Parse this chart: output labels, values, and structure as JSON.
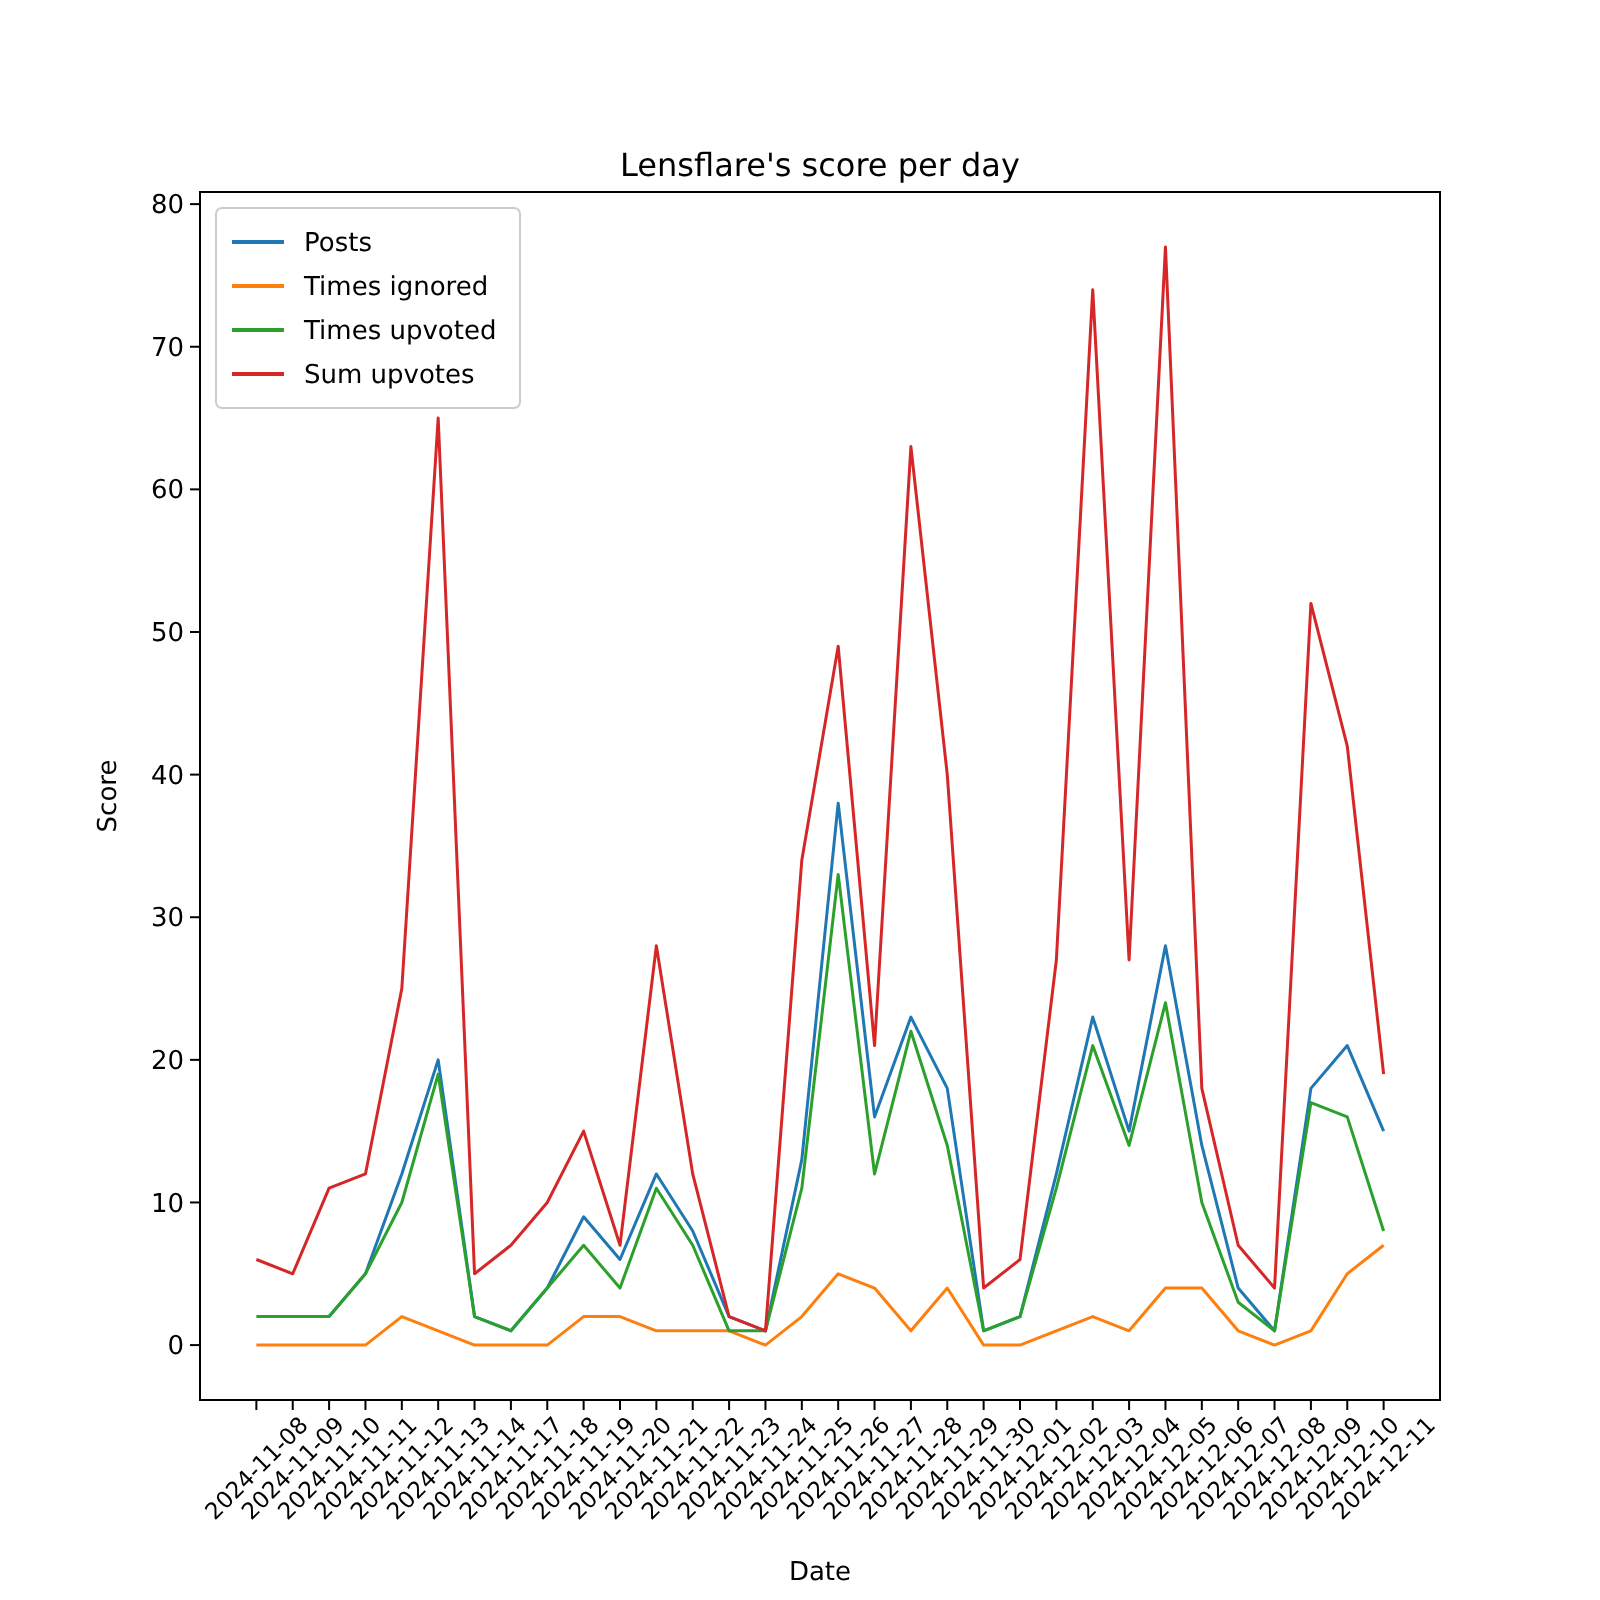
{
  "chart_data": {
    "type": "line",
    "title": "Lensflare's score per day",
    "xlabel": "Date",
    "ylabel": "Score",
    "categories": [
      "2024-11-08",
      "2024-11-09",
      "2024-11-10",
      "2024-11-11",
      "2024-11-12",
      "2024-11-13",
      "2024-11-14",
      "2024-11-17",
      "2024-11-18",
      "2024-11-19",
      "2024-11-20",
      "2024-11-21",
      "2024-11-22",
      "2024-11-23",
      "2024-11-24",
      "2024-11-25",
      "2024-11-26",
      "2024-11-27",
      "2024-11-28",
      "2024-11-29",
      "2024-11-30",
      "2024-12-01",
      "2024-12-02",
      "2024-12-03",
      "2024-12-04",
      "2024-12-05",
      "2024-12-06",
      "2024-12-07",
      "2024-12-08",
      "2024-12-09",
      "2024-12-10",
      "2024-12-11"
    ],
    "series": [
      {
        "name": "Posts",
        "color": "#1f77b4",
        "values": [
          null,
          null,
          2,
          5,
          12,
          20,
          2,
          1,
          4,
          9,
          6,
          12,
          8,
          2,
          1,
          13,
          38,
          16,
          23,
          18,
          1,
          2,
          12,
          23,
          15,
          28,
          14,
          4,
          1,
          18,
          21,
          15
        ]
      },
      {
        "name": "Times ignored",
        "color": "#ff7f0e",
        "values": [
          0,
          0,
          0,
          0,
          2,
          1,
          0,
          0,
          0,
          2,
          2,
          1,
          1,
          1,
          0,
          2,
          5,
          4,
          1,
          4,
          0,
          0,
          1,
          2,
          1,
          4,
          4,
          1,
          0,
          1,
          5,
          7
        ]
      },
      {
        "name": "Times upvoted",
        "color": "#2ca02c",
        "values": [
          2,
          2,
          2,
          5,
          10,
          19,
          2,
          1,
          4,
          7,
          4,
          11,
          7,
          1,
          1,
          11,
          33,
          12,
          22,
          14,
          1,
          2,
          11,
          21,
          14,
          24,
          10,
          3,
          1,
          17,
          16,
          8
        ]
      },
      {
        "name": "Sum upvotes",
        "color": "#d62728",
        "values": [
          6,
          5,
          11,
          12,
          25,
          65,
          5,
          7,
          10,
          15,
          7,
          28,
          12,
          2,
          1,
          34,
          49,
          21,
          63,
          40,
          4,
          6,
          27,
          74,
          27,
          77,
          18,
          7,
          4,
          52,
          42,
          19
        ]
      }
    ],
    "ylim": [
      -3.85,
      80.85
    ],
    "yticks": [
      0,
      10,
      20,
      30,
      40,
      50,
      60,
      70,
      80
    ],
    "legend": "top left",
    "grid": false,
    "marker": "none",
    "line_style": "solid"
  }
}
